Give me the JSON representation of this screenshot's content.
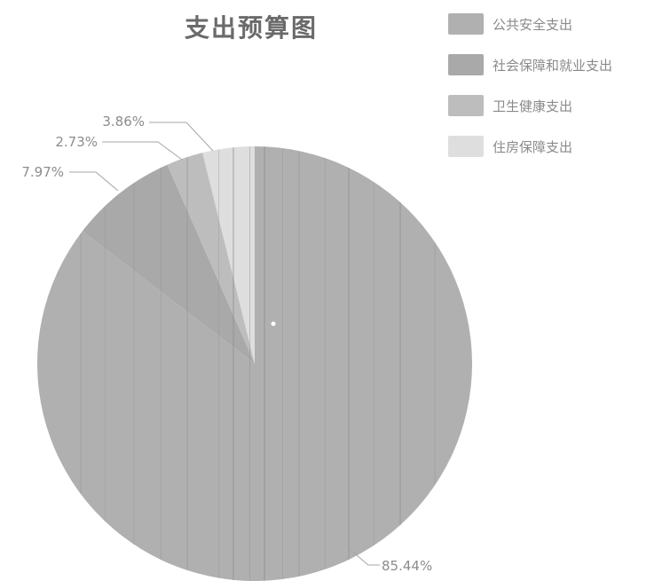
{
  "chart_data": {
    "type": "pie",
    "title": "支出预算图",
    "categories": [
      "公共安全支出",
      "社会保障和就业支出",
      "卫生健康支出",
      "住房保障支出"
    ],
    "values": [
      85.44,
      7.97,
      2.73,
      3.86
    ],
    "data_labels": [
      "85.44%",
      "7.97%",
      "2.73%",
      "3.86%"
    ],
    "colors": [
      "#b0b0b0",
      "#a9a9a9",
      "#bdbdbd",
      "#dedede"
    ],
    "legend_position": "top-right"
  }
}
